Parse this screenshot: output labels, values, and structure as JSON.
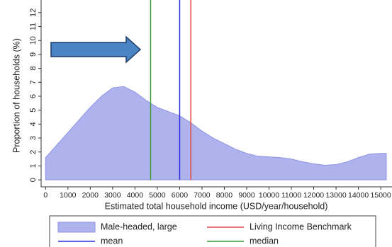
{
  "chart_data": {
    "type": "area",
    "xlabel": "Estimated total household income (USD/year/household)",
    "ylabel": "Proportion of households (%)",
    "x": [
      0,
      500,
      1000,
      1500,
      2000,
      2500,
      3000,
      3500,
      4000,
      4500,
      5000,
      5500,
      6000,
      6500,
      7000,
      7500,
      8000,
      8500,
      9000,
      9500,
      10000,
      10500,
      11000,
      11500,
      12000,
      12500,
      13000,
      13500,
      14000,
      14500,
      15000,
      15250
    ],
    "series": [
      {
        "name": "Male-headed, large",
        "color": "#aeb3ee",
        "values": [
          1.6,
          2.5,
          3.4,
          4.3,
          5.2,
          6.0,
          6.6,
          6.7,
          6.3,
          5.7,
          5.2,
          4.9,
          4.6,
          4.1,
          3.5,
          3.0,
          2.6,
          2.2,
          1.9,
          1.7,
          1.65,
          1.6,
          1.5,
          1.3,
          1.15,
          1.05,
          1.1,
          1.3,
          1.6,
          1.85,
          1.9,
          1.9
        ]
      }
    ],
    "vlines": [
      {
        "name": "Living Income Benchmark",
        "x": 6500,
        "color": "#e04848"
      },
      {
        "name": "mean",
        "x": 6000,
        "color": "#2b2bd8"
      },
      {
        "name": "median",
        "x": 4700,
        "color": "#3a9a3a"
      }
    ],
    "xlim": [
      -200,
      15250
    ],
    "xticks": [
      0,
      1000,
      2000,
      3000,
      4000,
      5000,
      6000,
      7000,
      8000,
      9000,
      10000,
      11000,
      12000,
      13000,
      14000,
      15000
    ],
    "ylim": [
      -0.5,
      12.5
    ],
    "yticks": [
      0,
      1,
      2,
      3,
      4,
      5,
      6,
      7,
      8,
      9,
      10,
      11,
      12
    ],
    "grid": false
  }
}
